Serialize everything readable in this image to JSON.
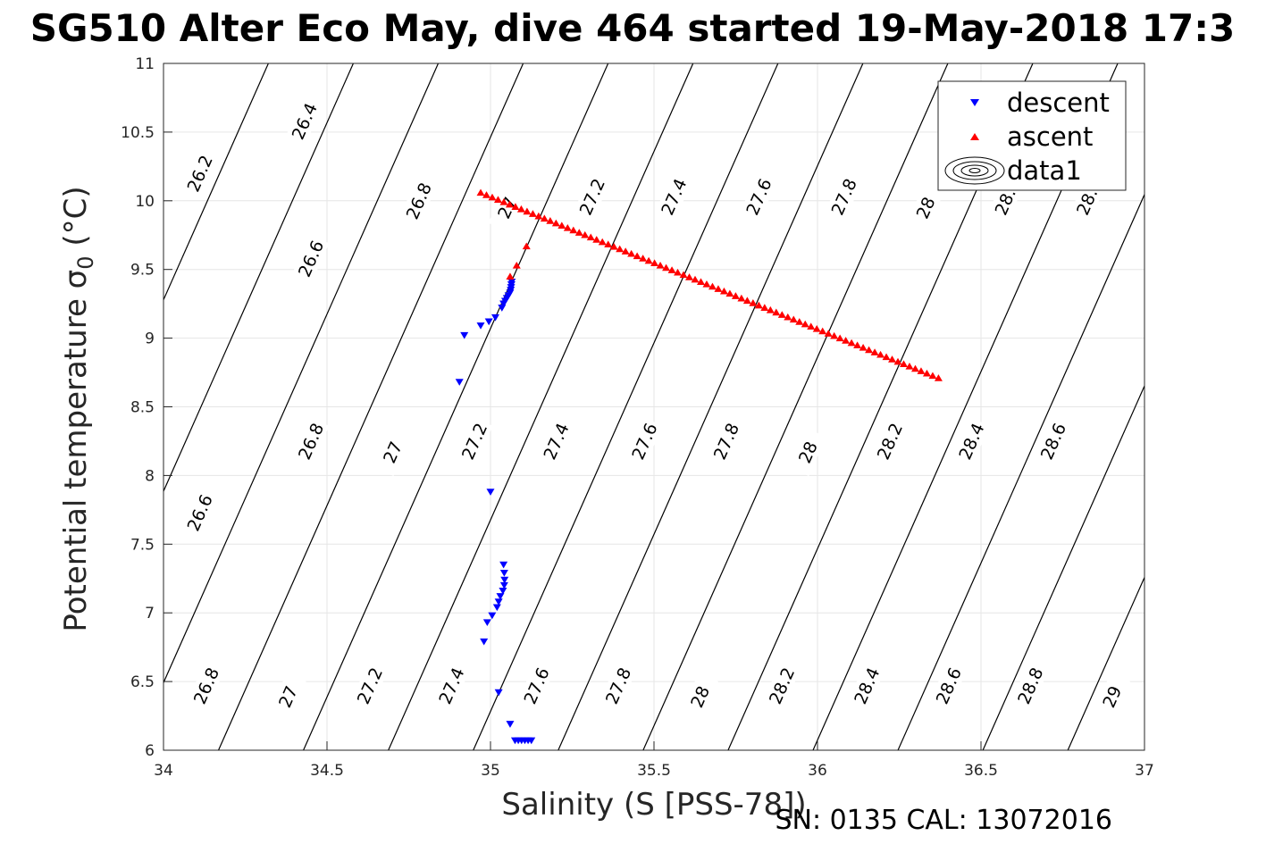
{
  "figure": {
    "title": "SG510 Alter Eco May, dive 464 started 19-May-2018 17:3",
    "footer": "SN: 0135  CAL: 13072016"
  },
  "chart_data": {
    "type": "scatter",
    "title": "SG510 Alter Eco May, dive 464 started 19-May-2018 17:3",
    "xlabel": "Salinity (S [PSS-78])",
    "ylabel": "Potential temperature σ",
    "ylabel_subscript": "0",
    "ylabel_unit": " (°C)",
    "xlim": [
      34,
      37
    ],
    "ylim": [
      6,
      11
    ],
    "xticks": [
      "34",
      "34.5",
      "35",
      "35.5",
      "36",
      "36.5",
      "37"
    ],
    "yticks": [
      "6",
      "6.5",
      "7",
      "7.5",
      "8",
      "8.5",
      "9",
      "9.5",
      "10",
      "10.5",
      "11"
    ],
    "grid": true,
    "legend_position": "top-right",
    "legend": [
      "descent",
      "ascent",
      "data1"
    ],
    "series": [
      {
        "name": "descent",
        "marker": "triangle-down",
        "color": "#0000ff",
        "points": [
          [
            34.905,
            8.68
          ],
          [
            34.92,
            9.02
          ],
          [
            34.97,
            9.09
          ],
          [
            34.995,
            9.12
          ],
          [
            35.015,
            9.15
          ],
          [
            35.035,
            9.22
          ],
          [
            35.04,
            9.25
          ],
          [
            35.045,
            9.27
          ],
          [
            35.05,
            9.29
          ],
          [
            35.055,
            9.31
          ],
          [
            35.06,
            9.33
          ],
          [
            35.062,
            9.35
          ],
          [
            35.063,
            9.37
          ],
          [
            35.064,
            9.39
          ],
          [
            35.065,
            9.41
          ],
          [
            35.0,
            7.88
          ],
          [
            35.04,
            7.35
          ],
          [
            35.042,
            7.29
          ],
          [
            35.043,
            7.24
          ],
          [
            35.042,
            7.2
          ],
          [
            35.038,
            7.16
          ],
          [
            35.03,
            7.12
          ],
          [
            35.025,
            7.08
          ],
          [
            35.02,
            7.04
          ],
          [
            35.005,
            6.98
          ],
          [
            34.99,
            6.93
          ],
          [
            34.98,
            6.79
          ],
          [
            35.025,
            6.42
          ],
          [
            35.06,
            6.19
          ],
          [
            35.075,
            6.07
          ],
          [
            35.085,
            6.07
          ],
          [
            35.095,
            6.07
          ],
          [
            35.105,
            6.07
          ],
          [
            35.115,
            6.07
          ],
          [
            35.125,
            6.07
          ]
        ]
      },
      {
        "name": "ascent",
        "marker": "triangle-up",
        "color": "#ff0000",
        "line_from": [
          34.97,
          10.06
        ],
        "line_to": [
          36.37,
          8.71
        ],
        "line_count": 80,
        "points": [
          [
            35.06,
            9.45
          ],
          [
            35.08,
            9.53
          ],
          [
            35.11,
            9.67
          ]
        ]
      }
    ],
    "isopycnals": [
      {
        "sigma": 26.2,
        "labels": [
          [
            34.11,
            10.2
          ]
        ]
      },
      {
        "sigma": 26.4,
        "labels": [
          [
            34.43,
            10.58
          ]
        ]
      },
      {
        "sigma": 26.6,
        "labels": [
          [
            34.11,
            7.73
          ],
          [
            34.45,
            9.58
          ]
        ]
      },
      {
        "sigma": 26.8,
        "labels": [
          [
            34.13,
            6.47
          ],
          [
            34.45,
            8.25
          ],
          [
            34.78,
            10.0
          ]
        ]
      },
      {
        "sigma": 27.0,
        "labels": [
          [
            34.38,
            6.39
          ],
          [
            34.7,
            8.17
          ],
          [
            35.05,
            9.95
          ]
        ]
      },
      {
        "sigma": 27.2,
        "labels": [
          [
            34.63,
            6.47
          ],
          [
            34.95,
            8.25
          ],
          [
            35.31,
            10.03
          ]
        ]
      },
      {
        "sigma": 27.4,
        "labels": [
          [
            34.88,
            6.47
          ],
          [
            35.2,
            8.25
          ],
          [
            35.56,
            10.03
          ]
        ]
      },
      {
        "sigma": 27.6,
        "labels": [
          [
            35.14,
            6.47
          ],
          [
            35.47,
            8.25
          ],
          [
            35.82,
            10.03
          ]
        ]
      },
      {
        "sigma": 27.8,
        "labels": [
          [
            35.39,
            6.47
          ],
          [
            35.72,
            8.25
          ],
          [
            36.08,
            10.03
          ]
        ]
      },
      {
        "sigma": 28.0,
        "labels": [
          [
            35.64,
            6.39
          ],
          [
            35.97,
            8.17
          ],
          [
            36.33,
            9.95
          ]
        ]
      },
      {
        "sigma": 28.2,
        "labels": [
          [
            35.89,
            6.47
          ],
          [
            36.22,
            8.25
          ],
          [
            36.58,
            10.03
          ]
        ]
      },
      {
        "sigma": 28.4,
        "labels": [
          [
            36.15,
            6.47
          ],
          [
            36.47,
            8.25
          ],
          [
            36.83,
            10.03
          ]
        ]
      },
      {
        "sigma": 28.6,
        "labels": [
          [
            36.4,
            6.47
          ],
          [
            36.72,
            8.25
          ]
        ]
      },
      {
        "sigma": 28.8,
        "labels": [
          [
            36.65,
            6.47
          ]
        ]
      },
      {
        "sigma": 29.0,
        "labels": [
          [
            36.9,
            6.39
          ]
        ]
      }
    ]
  }
}
